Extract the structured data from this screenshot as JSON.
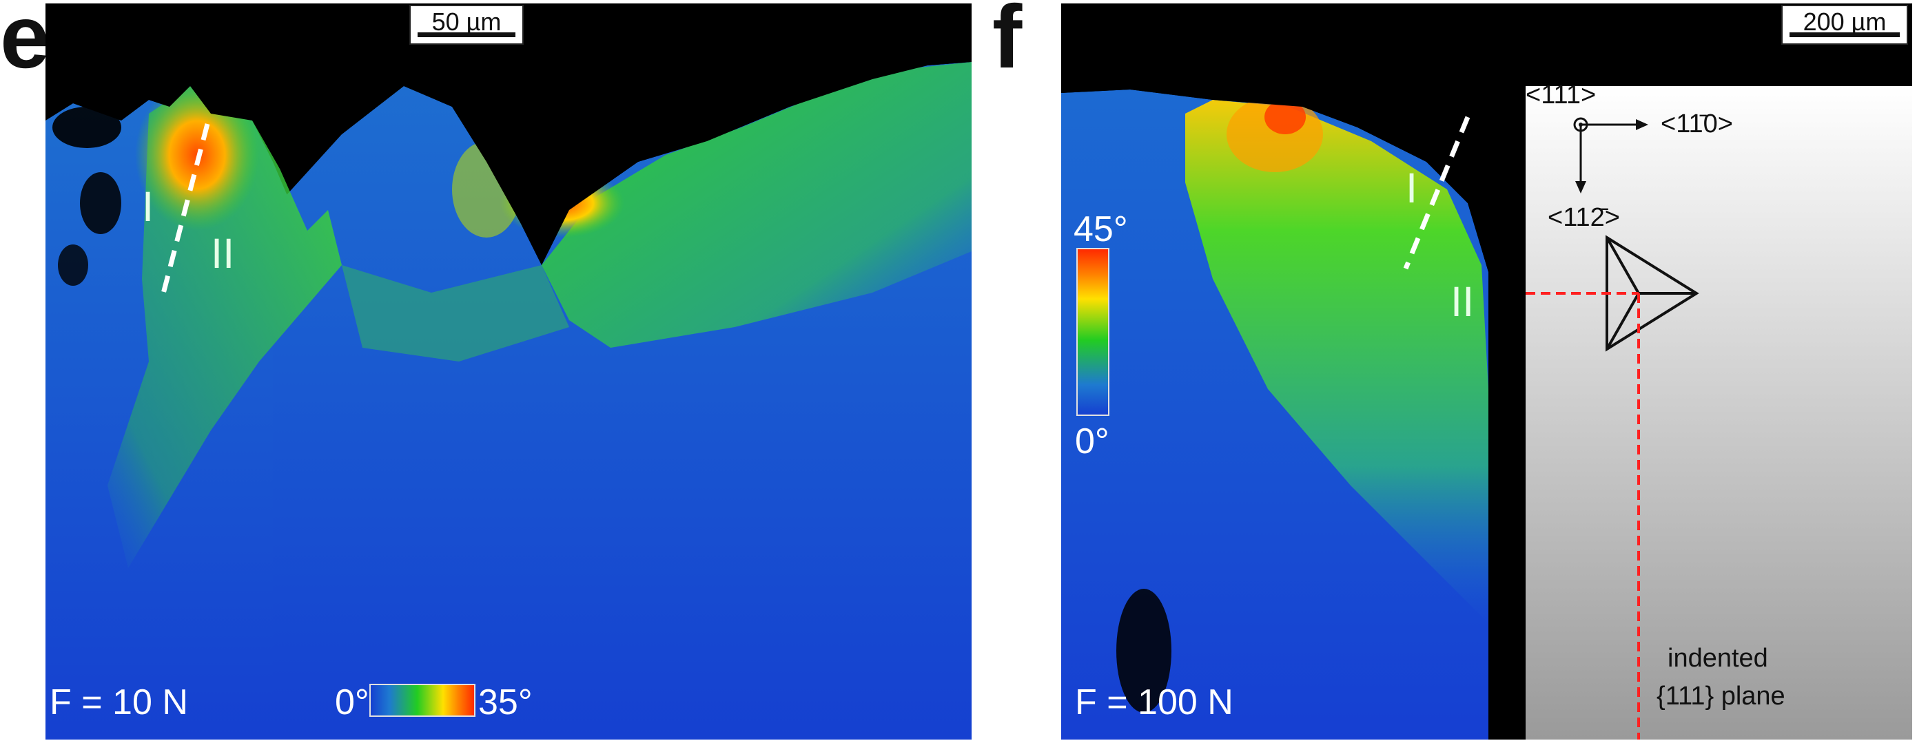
{
  "panel_e": {
    "letter": "e",
    "scale_bar": "50 µm",
    "region_I": "I",
    "region_II": "II",
    "force": "F = 10 N",
    "colorbar_min": "0°",
    "colorbar_max": "35°"
  },
  "panel_f": {
    "letter": "f",
    "scale_bar": "200 µm",
    "region_I": "I",
    "region_II": "II",
    "force": "F = 100 N",
    "colorbar_min": "0°",
    "colorbar_max": "45°",
    "axes": {
      "center": "<111>",
      "right": "<11̄0>",
      "down": "<112̄>"
    },
    "plane_line1": "indented",
    "plane_line2": "{111} plane"
  },
  "colors": {
    "map_blue": "#1a4fd6",
    "map_green": "#22cc22",
    "map_yellow": "#ffe000",
    "map_red": "#ff3a00",
    "cut_line": "#ff2020"
  }
}
